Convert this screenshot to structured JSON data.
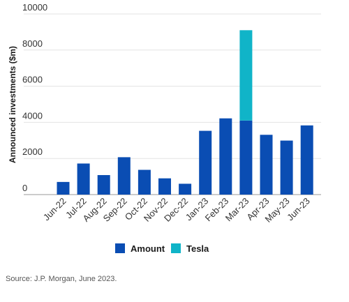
{
  "chart_data": {
    "type": "bar",
    "stacked": true,
    "categories": [
      "Jun-22",
      "Jul-22",
      "Aug-22",
      "Sep-22",
      "Oct-22",
      "Nov-22",
      "Dec-22",
      "Jan-23",
      "Feb-23",
      "Mar-23",
      "Apr-23",
      "May-23",
      "Jun-23"
    ],
    "series": [
      {
        "name": "Amount",
        "color": "#0a4db3",
        "values": [
          700,
          1720,
          1080,
          2070,
          1370,
          900,
          600,
          3530,
          4220,
          4100,
          3310,
          2990,
          3830
        ]
      },
      {
        "name": "Tesla",
        "color": "#10b4c8",
        "values": [
          0,
          0,
          0,
          0,
          0,
          0,
          0,
          0,
          0,
          5000,
          0,
          0,
          0
        ]
      }
    ],
    "title": "",
    "xlabel": "",
    "ylabel": "Announced investments ($m)",
    "ylim": [
      0,
      10000
    ],
    "yticks": [
      0,
      2000,
      4000,
      6000,
      8000,
      10000
    ],
    "grid": true,
    "legend_position": "bottom"
  },
  "source": "Source: J.P. Morgan, June 2023."
}
